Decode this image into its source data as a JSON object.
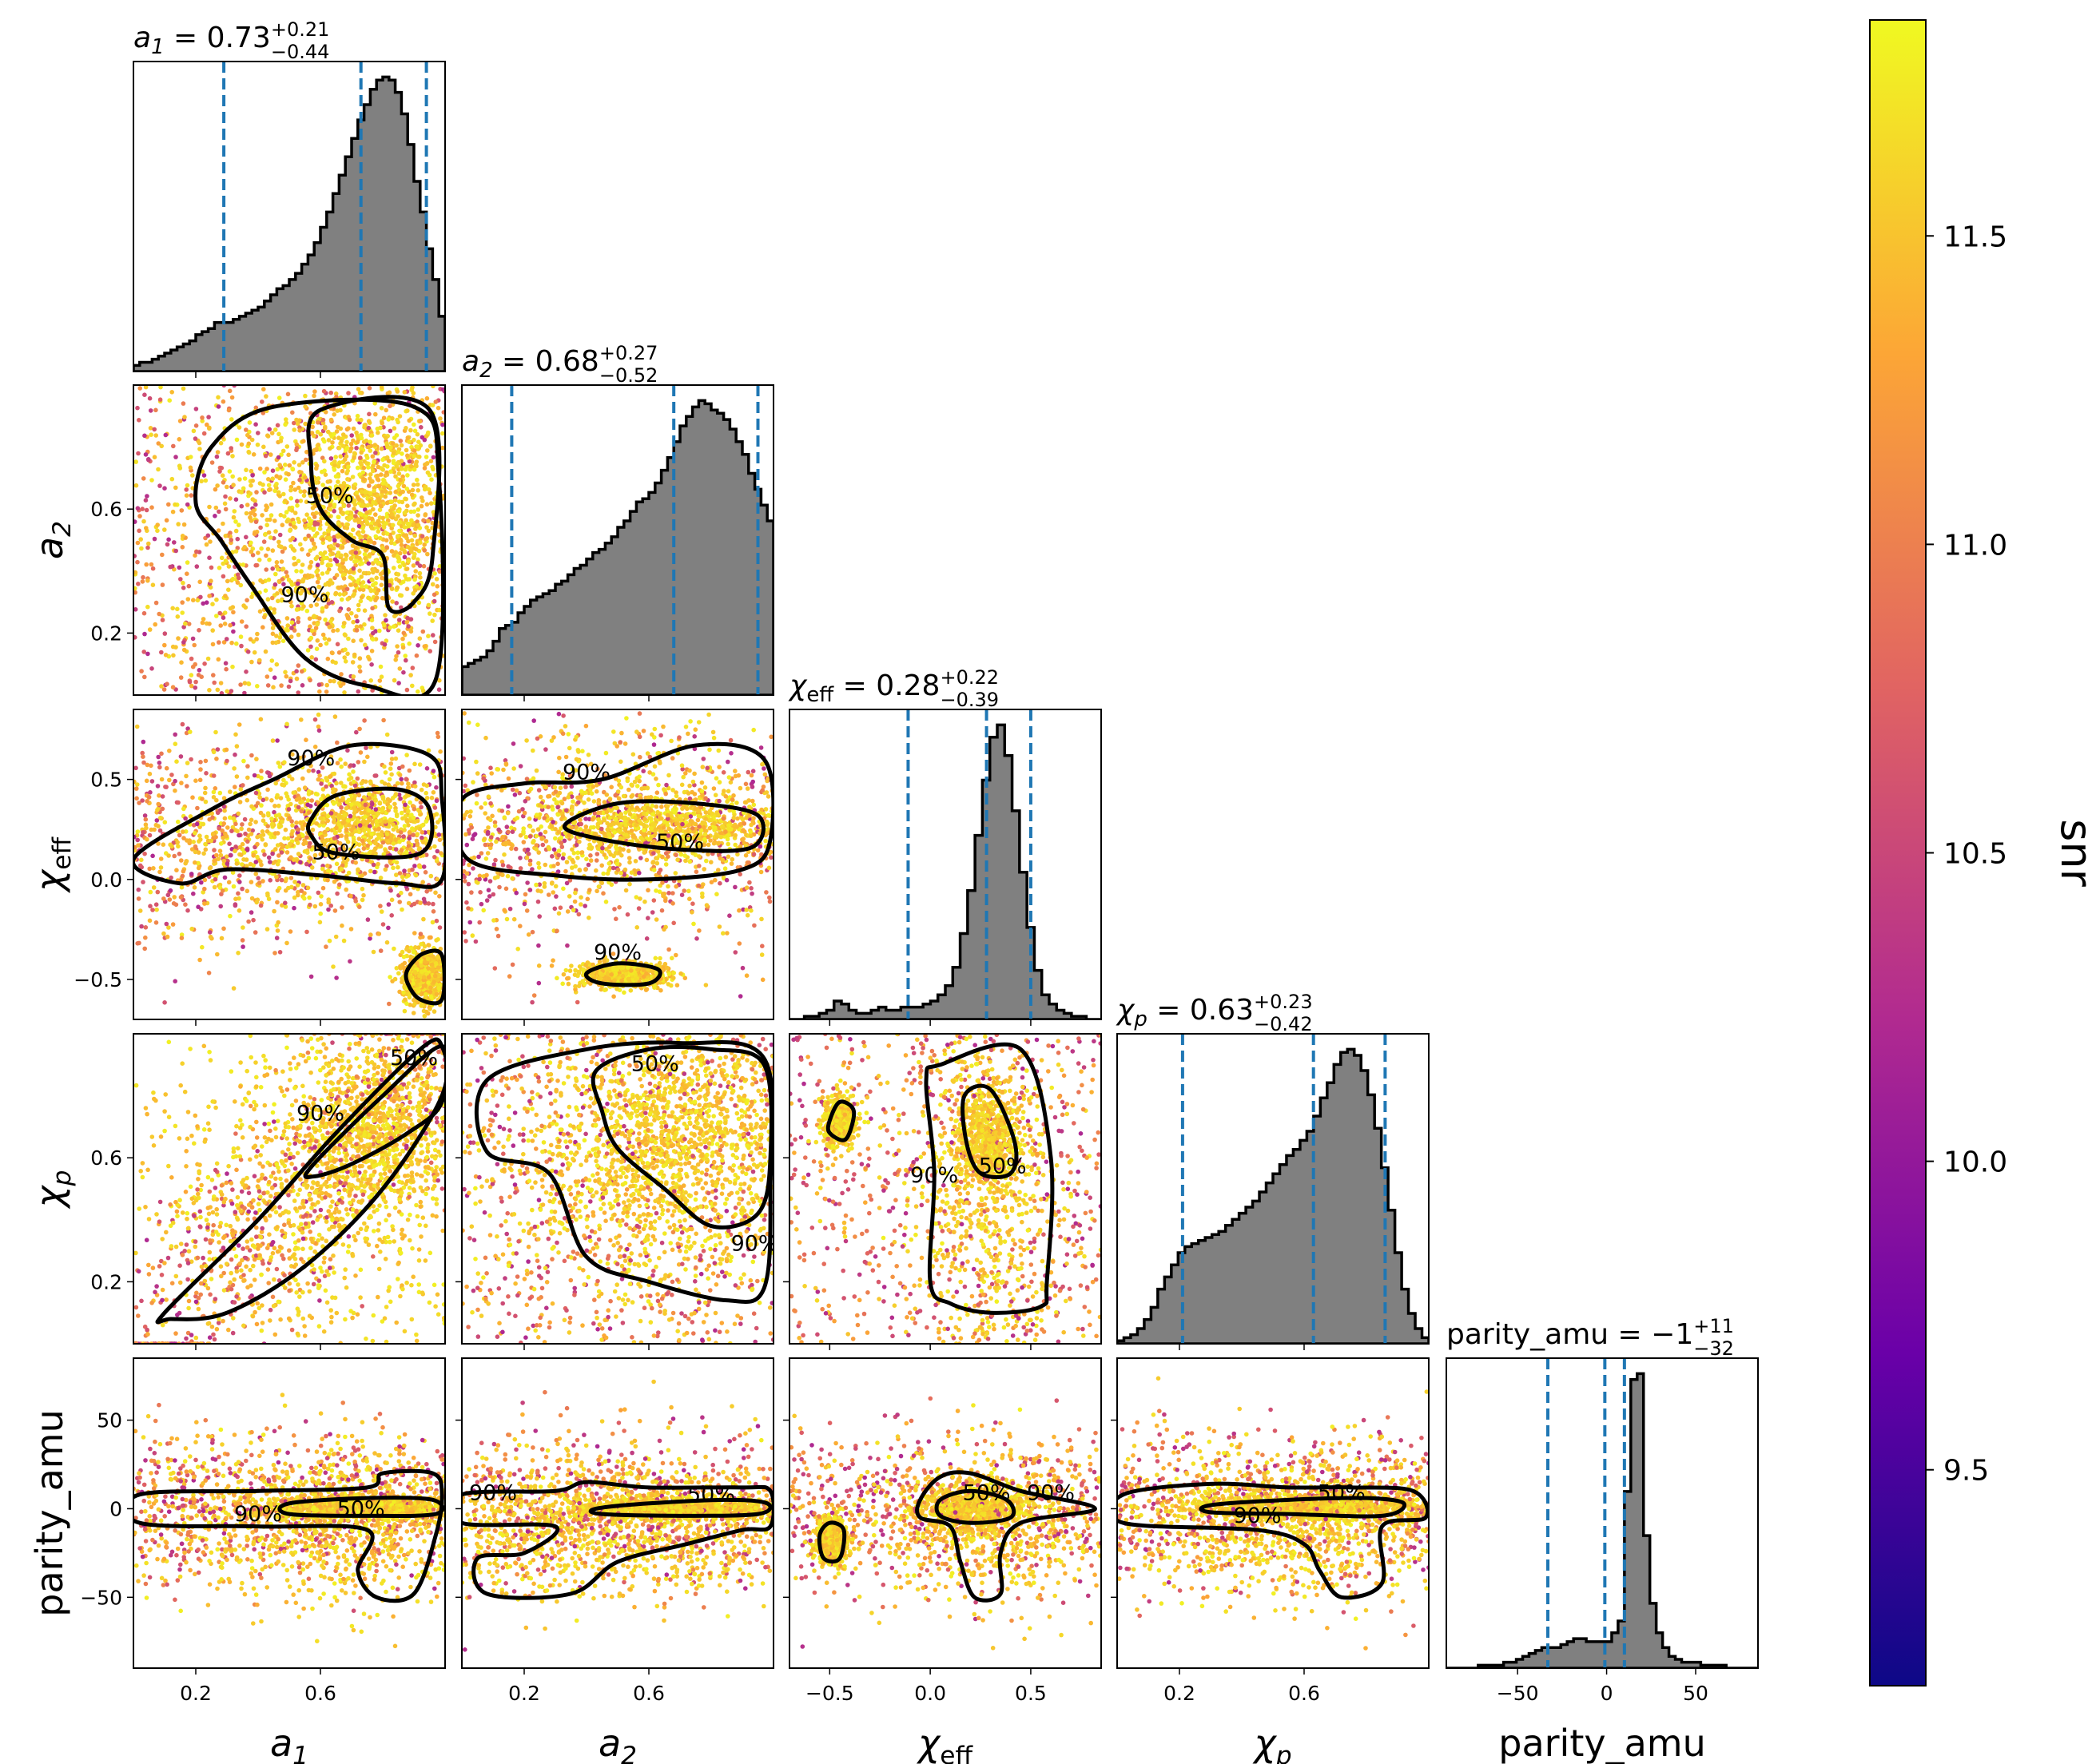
{
  "figure": {
    "parameters": [
      {
        "key": "a1",
        "label": "a",
        "sub": "1",
        "title_value": "0.73",
        "err_plus": "+0.21",
        "err_minus": "−0.44"
      },
      {
        "key": "a2",
        "label": "a",
        "sub": "2",
        "title_value": "0.68",
        "err_plus": "+0.27",
        "err_minus": "−0.52"
      },
      {
        "key": "chi_eff",
        "label": "χ",
        "sub": "eff",
        "title_value": "0.28",
        "err_plus": "+0.22",
        "err_minus": "−0.39"
      },
      {
        "key": "chi_p",
        "label": "χ",
        "sub": "p",
        "title_value": "0.63",
        "err_plus": "+0.23",
        "err_minus": "−0.42"
      },
      {
        "key": "parity_amu",
        "label": "parity_amu",
        "sub": "",
        "title_value": "−1",
        "err_plus": "+11",
        "err_minus": "−32"
      }
    ],
    "colorbar": {
      "label": "snr",
      "range": [
        9.15,
        11.85
      ],
      "ticks": [
        "9.5",
        "10.0",
        "10.5",
        "11.0",
        "11.5"
      ],
      "tick_values": [
        9.5,
        10.0,
        10.5,
        11.0,
        11.5
      ],
      "colormap": "plasma",
      "stops": [
        "#0d0887",
        "#6a00a8",
        "#b12a90",
        "#e16462",
        "#fca636",
        "#f0f921"
      ]
    },
    "contour_levels": [
      "50%",
      "90%"
    ],
    "colors": {
      "histogram_fill": "#808080",
      "quantile_line": "#1f77b4",
      "contour": "#000000"
    }
  },
  "chart_data": {
    "type": "corner",
    "axes": {
      "a1": {
        "range": [
          0.0,
          1.0
        ],
        "ticks": [
          "0.2",
          "0.6"
        ],
        "tick_values": [
          0.2,
          0.6
        ]
      },
      "a2": {
        "range": [
          0.0,
          1.0
        ],
        "ticks": [
          "0.2",
          "0.6"
        ],
        "tick_values": [
          0.2,
          0.6
        ]
      },
      "chi_eff": {
        "range": [
          -0.7,
          0.85
        ],
        "ticks": [
          "−0.5",
          "0.0",
          "0.5"
        ],
        "tick_values": [
          -0.5,
          0.0,
          0.5
        ]
      },
      "chi_p": {
        "range": [
          0.0,
          1.0
        ],
        "ticks": [
          "0.2",
          "0.6"
        ],
        "tick_values": [
          0.2,
          0.6
        ]
      },
      "parity_amu": {
        "range": [
          -90,
          85
        ],
        "ticks": [
          "−50",
          "0",
          "50"
        ],
        "tick_values": [
          -50,
          0,
          50
        ]
      }
    },
    "marginals": {
      "a1": {
        "quantiles": [
          0.29,
          0.73,
          0.94
        ],
        "counts": [
          2,
          3,
          3,
          4,
          5,
          6,
          7,
          8,
          9,
          10,
          12,
          13,
          14,
          16,
          16,
          16,
          17,
          18,
          19,
          20,
          21,
          23,
          25,
          27,
          28,
          30,
          32,
          35,
          38,
          42,
          47,
          52,
          58,
          64,
          70,
          76,
          82,
          87,
          92,
          95,
          96,
          95,
          91,
          84,
          74,
          62,
          52,
          40,
          30,
          18
        ]
      },
      "a2": {
        "quantiles": [
          0.16,
          0.68,
          0.95
        ],
        "counts": [
          9,
          10,
          11,
          12,
          14,
          17,
          21,
          22,
          23,
          26,
          28,
          30,
          31,
          32,
          33,
          35,
          36,
          38,
          40,
          41,
          43,
          45,
          46,
          48,
          50,
          53,
          55,
          58,
          61,
          62,
          64,
          67,
          71,
          75,
          80,
          85,
          88,
          91,
          93,
          92,
          90,
          89,
          87,
          84,
          80,
          76,
          70,
          65,
          60,
          55
        ]
      },
      "chi_eff": {
        "quantiles": [
          -0.11,
          0.28,
          0.5
        ],
        "counts": [
          0,
          0,
          1,
          1,
          2,
          3,
          6,
          5,
          3,
          2,
          2,
          3,
          4,
          3,
          3,
          4,
          4,
          4,
          5,
          6,
          8,
          11,
          17,
          28,
          42,
          60,
          78,
          92,
          96,
          86,
          68,
          48,
          30,
          16,
          8,
          5,
          3,
          2,
          1,
          1,
          0,
          0
        ]
      },
      "chi_p": {
        "quantiles": [
          0.21,
          0.63,
          0.86
        ],
        "counts": [
          1,
          2,
          3,
          5,
          8,
          12,
          18,
          22,
          26,
          30,
          32,
          33,
          34,
          35,
          36,
          37,
          39,
          41,
          43,
          45,
          47,
          50,
          53,
          56,
          59,
          62,
          64,
          67,
          70,
          75,
          81,
          86,
          92,
          96,
          97,
          95,
          90,
          82,
          71,
          58,
          44,
          30,
          18,
          10,
          5,
          2
        ]
      },
      "parity_amu": {
        "quantiles": [
          -33,
          -1,
          10
        ],
        "counts": [
          0,
          0,
          0,
          0,
          0,
          1,
          1,
          1,
          1,
          2,
          2,
          3,
          4,
          5,
          6,
          7,
          7,
          7,
          8,
          9,
          10,
          10,
          9,
          9,
          9,
          9,
          12,
          16,
          60,
          98,
          100,
          45,
          22,
          12,
          7,
          4,
          3,
          2,
          2,
          2,
          1,
          1,
          1,
          1,
          0,
          0,
          0,
          0,
          0
        ]
      }
    }
  }
}
